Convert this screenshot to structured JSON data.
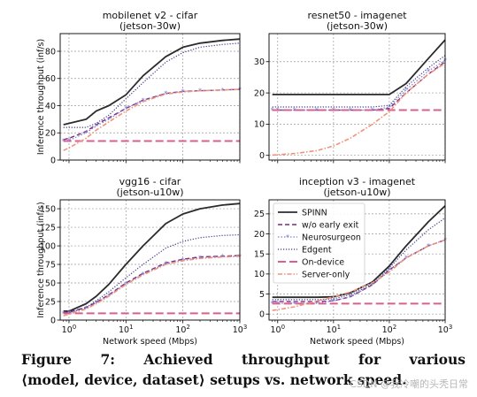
{
  "figure": {
    "caption_label": "Figure",
    "caption_number": "7:",
    "caption_words": [
      "Achieved",
      "throughput",
      "for",
      "various"
    ],
    "caption_line2": "⟨model, device, dataset⟩ setups vs. network speed.",
    "watermark": "CSDN @我冷嘲的头秃日常"
  },
  "colors": {
    "SPINN": "#2b2b2b",
    "w/o early exit": "#7b2a7b",
    "Neurosurgeon": "#7f7fd4",
    "Edgent": "#3a3a8c",
    "On-device": "#d6608f",
    "Server-only": "#f0937a"
  },
  "chart_data": [
    {
      "type": "line",
      "title": "mobilenet v2 - cifar\n(jetson-30w)",
      "xlabel": "",
      "ylabel": "Inference throughput (inf/s)",
      "xscale": "log",
      "xlim": [
        0.7,
        1000
      ],
      "ylim": [
        0,
        93
      ],
      "yticks": [
        0,
        20,
        40,
        60,
        80
      ],
      "xticks": [],
      "grid": true,
      "legend": null,
      "x": [
        0.8,
        1,
        2,
        3,
        5,
        10,
        20,
        50,
        100,
        200,
        500,
        1000
      ],
      "series": [
        {
          "name": "SPINN",
          "values": [
            26,
            27,
            30,
            36,
            40,
            48,
            62,
            76,
            83,
            86,
            88,
            89
          ]
        },
        {
          "name": "w/o early exit",
          "values": [
            15,
            16,
            21,
            26,
            31,
            38,
            44,
            49,
            50.5,
            51,
            51.5,
            52
          ]
        },
        {
          "name": "Neurosurgeon",
          "values": [
            14,
            14.5,
            20,
            25,
            30,
            38,
            44,
            49,
            50.5,
            51,
            51.5,
            52
          ]
        },
        {
          "name": "Edgent",
          "values": [
            24,
            24,
            24,
            27,
            33,
            45,
            57,
            72,
            79,
            83,
            85,
            86
          ]
        },
        {
          "name": "On-device",
          "values": [
            14,
            14,
            14,
            14,
            14,
            14,
            14,
            14,
            14,
            14,
            14,
            14
          ]
        },
        {
          "name": "Server-only",
          "values": [
            7,
            9,
            16,
            22,
            28,
            36,
            43,
            48.5,
            50,
            51,
            51.5,
            52
          ]
        }
      ]
    },
    {
      "type": "line",
      "title": "resnet50 - imagenet\n(jetson-30w)",
      "xlabel": "",
      "ylabel": "",
      "xscale": "log",
      "xlim": [
        0.7,
        1000
      ],
      "ylim": [
        -1.5,
        39
      ],
      "yticks": [
        0,
        10,
        20,
        30
      ],
      "xticks": [],
      "grid": true,
      "legend": null,
      "x": [
        0.8,
        1,
        2,
        5,
        10,
        20,
        50,
        100,
        200,
        500,
        1000
      ],
      "series": [
        {
          "name": "SPINN",
          "values": [
            19.5,
            19.5,
            19.5,
            19.5,
            19.5,
            19.5,
            19.5,
            19.5,
            23,
            31,
            37
          ]
        },
        {
          "name": "w/o early exit",
          "values": [
            14.5,
            14.5,
            14.5,
            14.5,
            14.5,
            14.5,
            14.5,
            15,
            20,
            26,
            30
          ]
        },
        {
          "name": "Neurosurgeon",
          "values": [
            14.5,
            14.5,
            14.5,
            14.5,
            14.5,
            14.5,
            14.5,
            15.5,
            21,
            27,
            30.5
          ]
        },
        {
          "name": "Edgent",
          "values": [
            15.5,
            15.5,
            15.5,
            15.5,
            15.5,
            15.5,
            15.5,
            16,
            22,
            28,
            32
          ]
        },
        {
          "name": "On-device",
          "values": [
            14.5,
            14.5,
            14.5,
            14.5,
            14.5,
            14.5,
            14.5,
            14.5,
            14.5,
            14.5,
            14.5
          ]
        },
        {
          "name": "Server-only",
          "values": [
            0.1,
            0.2,
            0.6,
            1.5,
            3,
            5.5,
            10,
            14,
            20,
            26,
            29.5
          ]
        }
      ]
    },
    {
      "type": "line",
      "title": "vgg16 - cifar\n(jetson-u10w)",
      "xlabel": "Network speed (Mbps)",
      "ylabel": "Inference throughput (inf/s)",
      "xscale": "log",
      "xlim": [
        0.7,
        1000
      ],
      "ylim": [
        0,
        162
      ],
      "yticks": [
        0,
        25,
        50,
        75,
        100,
        125,
        150
      ],
      "xticks": [
        1,
        10,
        100,
        1000
      ],
      "grid": true,
      "legend": null,
      "x": [
        0.8,
        1,
        2,
        3,
        5,
        10,
        20,
        50,
        100,
        200,
        500,
        1000
      ],
      "series": [
        {
          "name": "SPINN",
          "values": [
            12,
            12,
            22,
            32,
            48,
            75,
            100,
            130,
            143,
            150,
            155,
            157
          ]
        },
        {
          "name": "w/o early exit",
          "values": [
            10,
            11,
            17,
            24,
            34,
            50,
            63,
            77,
            82,
            85,
            86,
            87
          ]
        },
        {
          "name": "Neurosurgeon",
          "values": [
            9,
            10,
            16,
            23,
            33,
            49,
            62,
            76,
            81,
            84,
            85.5,
            86
          ]
        },
        {
          "name": "Edgent",
          "values": [
            10,
            10,
            17,
            26,
            38,
            57,
            75,
            97,
            106,
            111,
            114,
            115
          ]
        },
        {
          "name": "On-device",
          "values": [
            9,
            9,
            9,
            9,
            9,
            9,
            9,
            9,
            9,
            9,
            9,
            9
          ]
        },
        {
          "name": "Server-only",
          "values": [
            6,
            8,
            15,
            22,
            32,
            48,
            61,
            75,
            80,
            83,
            85,
            86
          ]
        }
      ]
    },
    {
      "type": "line",
      "title": "inception v3 - imagenet\n(jetson-u10w)",
      "xlabel": "Network speed (Mbps)",
      "ylabel": "",
      "xscale": "log",
      "xlim": [
        0.7,
        1000
      ],
      "ylim": [
        -1.5,
        28.5
      ],
      "yticks": [
        0,
        5,
        10,
        15,
        20,
        25
      ],
      "xticks": [
        1,
        10,
        100,
        1000
      ],
      "grid": true,
      "legend": {
        "position": "upper-left",
        "entries": [
          "SPINN",
          "w/o early exit",
          "Neurosurgeon",
          "Edgent",
          "On-device",
          "Server-only"
        ]
      },
      "x": [
        0.8,
        1,
        2,
        5,
        10,
        20,
        50,
        100,
        200,
        500,
        1000
      ],
      "series": [
        {
          "name": "SPINN",
          "values": [
            4.2,
            4.2,
            4.2,
            4.2,
            4.3,
            5.3,
            8,
            12,
            17,
            23,
            27
          ]
        },
        {
          "name": "w/o early exit",
          "values": [
            3.1,
            3.1,
            3.1,
            3.1,
            3.3,
            4.3,
            7.3,
            11,
            14,
            17,
            18.5
          ]
        },
        {
          "name": "Neurosurgeon",
          "values": [
            2.7,
            2.7,
            2.7,
            2.7,
            3.3,
            4.3,
            7.3,
            11,
            14,
            17,
            18.5
          ]
        },
        {
          "name": "Edgent",
          "values": [
            3.6,
            3.6,
            3.6,
            3.6,
            3.8,
            4.8,
            7.5,
            11.5,
            16,
            21,
            24
          ]
        },
        {
          "name": "On-device",
          "values": [
            2.6,
            2.6,
            2.6,
            2.6,
            2.6,
            2.6,
            2.6,
            2.6,
            2.6,
            2.6,
            2.6
          ]
        },
        {
          "name": "Server-only",
          "values": [
            0.9,
            1.1,
            1.8,
            3.2,
            4.3,
            5.5,
            7.8,
            10.5,
            14,
            17,
            18.5
          ]
        }
      ]
    }
  ]
}
